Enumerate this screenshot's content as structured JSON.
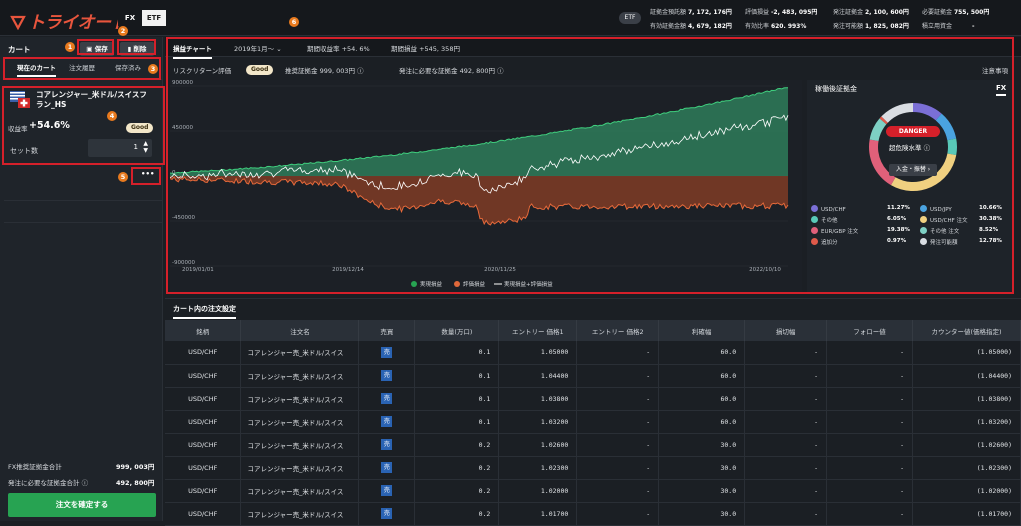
{
  "app": {
    "logo": "トライオート",
    "modes": [
      "FX",
      "ETF"
    ]
  },
  "account": {
    "row1": [
      {
        "label": "証拠金預託額",
        "value": "7, 172, 176円"
      },
      {
        "label": "評価損益",
        "value": "-2, 483, 095円"
      },
      {
        "label": "発注証拠金",
        "value": "2, 100, 600円"
      },
      {
        "label": "必要証拠金",
        "value": "755, 500円"
      }
    ],
    "row2": [
      {
        "label": "有効証拠金額",
        "value": "4, 679, 182円"
      },
      {
        "label": "有効比率",
        "value": "620. 993%"
      },
      {
        "label": "発注可能額",
        "value": "1, 825, 082円"
      },
      {
        "label": "積立用資金",
        "value": "-"
      }
    ],
    "etf_label": "ETF"
  },
  "badges": [
    "1",
    "2",
    "3",
    "4",
    "5",
    "6"
  ],
  "cart": {
    "title": "カート",
    "save": "保存",
    "delete": "削除",
    "tabs": [
      "現在のカート",
      "注文履歴",
      "保存済み"
    ],
    "item": {
      "name": "コアレンジャー_米ドル/スイスフラン_HS",
      "yield_label": "収益率",
      "yield_value": "+54.6%",
      "rating": "Good",
      "sets_label": "セット数",
      "sets_value": "1"
    },
    "more": "•••",
    "summary": [
      {
        "label": "FX推奨証拠金合計",
        "value": "999, 003円"
      },
      {
        "label": "発注に必要な証拠金合計",
        "value": "492, 800円"
      }
    ],
    "confirm": "注文を確定する"
  },
  "main": {
    "chart_tab": "損益チャート",
    "period_select": "2019年1月～",
    "period_yield": "期間収益率 +54. 6%",
    "period_pl": "期間損益 +545, 358円",
    "risk_label": "リスクリターン評価",
    "risk_value": "Good",
    "rec_margin": "推奨証拠金 999, 003円",
    "req_margin": "発注に必要な証拠金 492, 800円",
    "notes": "注意事項"
  },
  "chart_data": {
    "type": "area",
    "yticks": [
      "900000",
      "450000",
      "0",
      "-450000",
      "-900000"
    ],
    "xticks": [
      "2019/01/01",
      "2019/12/14",
      "2020/11/25",
      "2022/10/10"
    ],
    "ylim": [
      -900000,
      900000
    ],
    "series": [
      {
        "name": "実現損益",
        "color": "#27a352"
      },
      {
        "name": "評価損益",
        "color": "#e0683a"
      },
      {
        "name": "実現損益+評価損益",
        "color": "#ffffff"
      }
    ]
  },
  "donut": {
    "title": "稼働後証拠金",
    "tab": "FX",
    "status": "DANGER",
    "level": "超危険水準",
    "action": "入金・振替",
    "legend": [
      {
        "name": "USD/CHF",
        "pct": "11.27%",
        "color": "#7b6fd6"
      },
      {
        "name": "USD/JPY",
        "pct": "10.66%",
        "color": "#4aa3e0"
      },
      {
        "name": "その他",
        "pct": "6.05%",
        "color": "#59c9b8"
      },
      {
        "name": "USD/CHF 注文",
        "pct": "30.38%",
        "color": "#f0d080"
      },
      {
        "name": "EUR/GBP 注文",
        "pct": "19.38%",
        "color": "#e0607a"
      },
      {
        "name": "その他 注文",
        "pct": "8.52%",
        "color": "#7ed0c4"
      },
      {
        "name": "追加分",
        "pct": "0.97%",
        "color": "#e05a4a"
      },
      {
        "name": "発注可能額",
        "pct": "12.78%",
        "color": "#d9dde2"
      }
    ]
  },
  "orders": {
    "title": "カート内の注文設定",
    "headers": [
      "銘柄",
      "注文名",
      "売買",
      "数量(万口)",
      "エントリー 価格1",
      "エントリー 価格2",
      "利確幅",
      "損切幅",
      "フォロー値",
      "カウンター値(価格指定)"
    ],
    "rows": [
      [
        "USD/CHF",
        "コアレンジャー売_米ドル/スイス",
        "売",
        "0.1",
        "1.05000",
        "-",
        "60.0",
        "-",
        "-",
        "(1.05000)"
      ],
      [
        "USD/CHF",
        "コアレンジャー売_米ドル/スイス",
        "売",
        "0.1",
        "1.04400",
        "-",
        "60.0",
        "-",
        "-",
        "(1.04400)"
      ],
      [
        "USD/CHF",
        "コアレンジャー売_米ドル/スイス",
        "売",
        "0.1",
        "1.03800",
        "-",
        "60.0",
        "-",
        "-",
        "(1.03800)"
      ],
      [
        "USD/CHF",
        "コアレンジャー売_米ドル/スイス",
        "売",
        "0.1",
        "1.03200",
        "-",
        "60.0",
        "-",
        "-",
        "(1.03200)"
      ],
      [
        "USD/CHF",
        "コアレンジャー売_米ドル/スイス",
        "売",
        "0.2",
        "1.02600",
        "-",
        "30.0",
        "-",
        "-",
        "(1.02600)"
      ],
      [
        "USD/CHF",
        "コアレンジャー売_米ドル/スイス",
        "売",
        "0.2",
        "1.02300",
        "-",
        "30.0",
        "-",
        "-",
        "(1.02300)"
      ],
      [
        "USD/CHF",
        "コアレンジャー売_米ドル/スイス",
        "売",
        "0.2",
        "1.02000",
        "-",
        "30.0",
        "-",
        "-",
        "(1.02000)"
      ],
      [
        "USD/CHF",
        "コアレンジャー売_米ドル/スイス",
        "売",
        "0.2",
        "1.01700",
        "-",
        "30.0",
        "-",
        "-",
        "(1.01700)"
      ]
    ]
  }
}
